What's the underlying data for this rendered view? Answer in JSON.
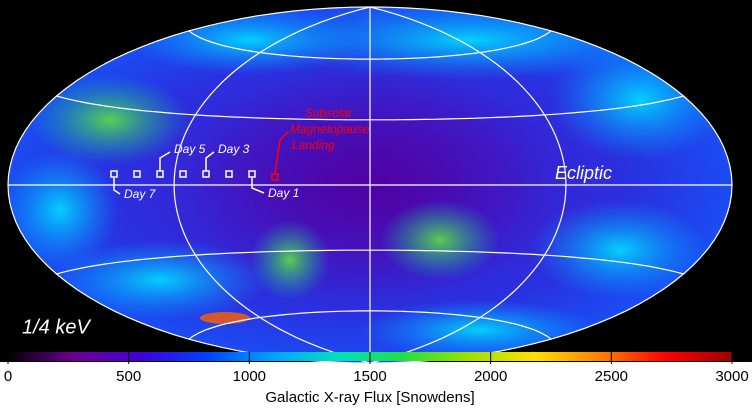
{
  "map": {
    "energy_label": "1/4 keV",
    "ecliptic_label": "Ecliptic",
    "annotation_lines": [
      "Subsolar",
      "Magnetopause",
      "Landing"
    ],
    "day_labels": [
      "Day 7",
      "Day 5",
      "Day 3",
      "Day 1"
    ]
  },
  "colorbar": {
    "label": "Galactic X-ray Flux [Snowdens]",
    "lim": [
      0,
      3000
    ],
    "ticks": [
      0,
      500,
      1000,
      1500,
      2000,
      2500,
      3000
    ],
    "colors": [
      "#000000",
      "#6a0090",
      "#4000d8",
      "#0040ff",
      "#00a0ff",
      "#00e0c0",
      "#20e040",
      "#a0e000",
      "#ffe000",
      "#ff8000",
      "#ff0000",
      "#a00000"
    ]
  }
}
